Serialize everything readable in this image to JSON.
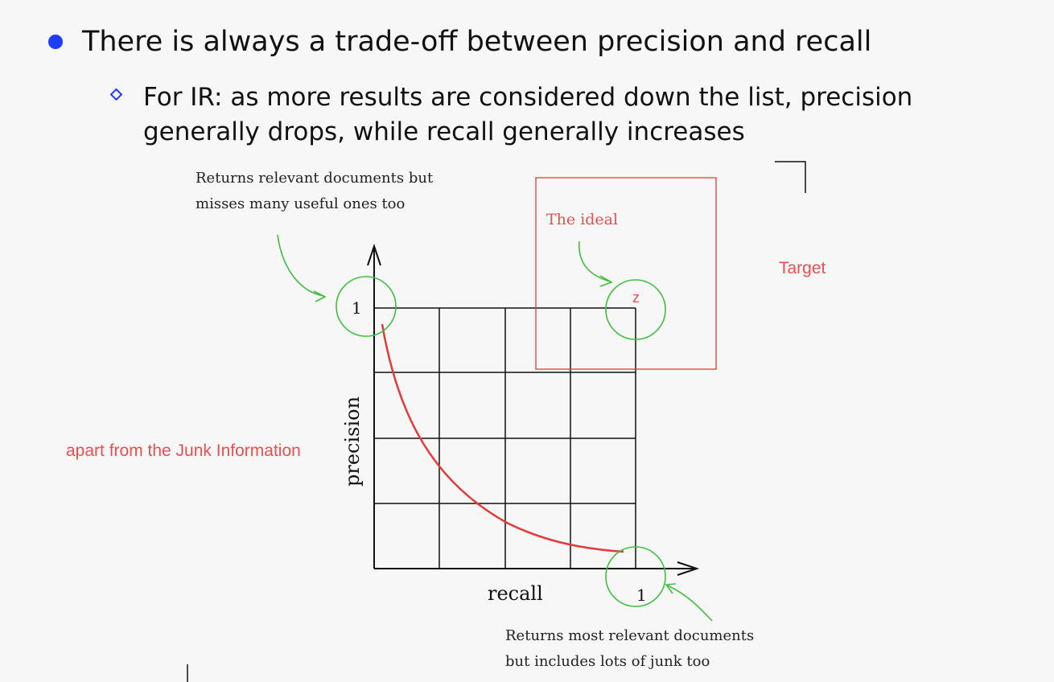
{
  "slide": {
    "bullet_main": "There is always a trade-off between precision and recall",
    "bullet_sub": "For IR: as more results are considered down the list, precision generally drops, while recall generally increases"
  },
  "diagram": {
    "callout_top_left_line1": "Returns relevant documents but",
    "callout_top_left_line2": "misses many useful ones too",
    "callout_bottom_right_line1": "Returns most relevant documents",
    "callout_bottom_right_line2": "but includes lots of junk too",
    "ideal_label": "The ideal",
    "ideal_marker": "z",
    "target_label": "Target",
    "junk_label": "apart from the Junk Information",
    "x_axis_label": "recall",
    "y_axis_label": "precision",
    "x_max_label": "1",
    "y_max_label": "1",
    "colors": {
      "curve": "#e23b3b",
      "circles": "#3fbf3f",
      "notes": "#e65050",
      "bullet": "#1f3bff",
      "grid": "#111111"
    }
  }
}
